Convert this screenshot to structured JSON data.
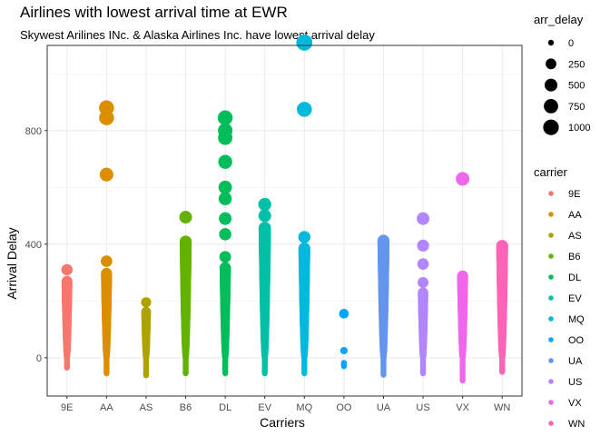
{
  "chart_data": {
    "type": "scatter",
    "title": "Airlines with lowest arrival time at EWR",
    "subtitle": "Skywest Arilines INc. & Alaska Airlines Inc. have lowest arrival delay",
    "xlabel": "Carriers",
    "ylabel": "Arrival Delay",
    "ylim": [
      -135,
      1100
    ],
    "yticks": [
      0,
      400,
      800
    ],
    "grid": true,
    "legend_position": "right",
    "size_legend": {
      "title": "arr_delay",
      "values": [
        0,
        250,
        500,
        750,
        1000
      ]
    },
    "color_legend": {
      "title": "carrier"
    },
    "categories": [
      "9E",
      "AA",
      "AS",
      "B6",
      "DL",
      "EV",
      "MQ",
      "OO",
      "UA",
      "US",
      "VX",
      "WN"
    ],
    "series": [
      {
        "carrier": "9E",
        "color": "#F8766D",
        "min": -35,
        "max": 270,
        "outliers": [
          310
        ]
      },
      {
        "carrier": "AA",
        "color": "#DB8E00",
        "min": -55,
        "max": 300,
        "outliers": [
          340,
          645,
          845,
          880
        ]
      },
      {
        "carrier": "AS",
        "color": "#AEA200",
        "min": -62,
        "max": 165,
        "outliers": [
          195
        ]
      },
      {
        "carrier": "B6",
        "color": "#64B200",
        "min": -55,
        "max": 410,
        "outliers": [
          495
        ]
      },
      {
        "carrier": "DL",
        "color": "#00BD5C",
        "min": -55,
        "max": 320,
        "outliers": [
          355,
          435,
          490,
          560,
          600,
          690,
          775,
          800,
          845
        ]
      },
      {
        "carrier": "EV",
        "color": "#00C1A7",
        "min": -55,
        "max": 460,
        "outliers": [
          500,
          540
        ]
      },
      {
        "carrier": "MQ",
        "color": "#00BADE",
        "min": -55,
        "max": 385,
        "outliers": [
          425,
          875,
          1110
        ]
      },
      {
        "carrier": "OO",
        "color": "#00A6FF",
        "min": -30,
        "max": -15,
        "outliers": [
          25,
          155
        ]
      },
      {
        "carrier": "UA",
        "color": "#6495ED",
        "min": -60,
        "max": 415,
        "outliers": []
      },
      {
        "carrier": "US",
        "color": "#B385FF",
        "min": -55,
        "max": 230,
        "outliers": [
          265,
          330,
          395,
          490
        ]
      },
      {
        "carrier": "VX",
        "color": "#EF67EB",
        "min": -80,
        "max": 290,
        "outliers": [
          630
        ]
      },
      {
        "carrier": "WN",
        "color": "#FF63B6",
        "min": -50,
        "max": 395,
        "outliers": []
      }
    ]
  }
}
